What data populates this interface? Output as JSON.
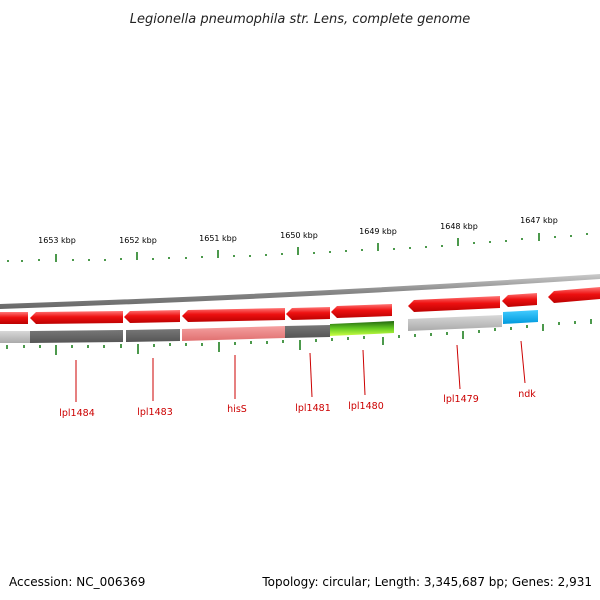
{
  "title": "Legionella pneumophila str. Lens, complete genome",
  "ticks": [
    {
      "label": "1653 kbp"
    },
    {
      "label": "1652 kbp"
    },
    {
      "label": "1651 kbp"
    },
    {
      "label": "1650 kbp"
    },
    {
      "label": "1649 kbp"
    },
    {
      "label": "1648 kbp"
    },
    {
      "label": "1647 kbp"
    }
  ],
  "genes": [
    {
      "label": "lpl1484"
    },
    {
      "label": "lpl1483"
    },
    {
      "label": "hisS"
    },
    {
      "label": "lpl1481"
    },
    {
      "label": "lpl1480"
    },
    {
      "label": "lpl1479"
    },
    {
      "label": "ndk"
    }
  ],
  "footer": {
    "accession": "Accession: NC_006369",
    "summary": "Topology: circular; Length: 3,345,687 bp; Genes: 2,931"
  },
  "colors": {
    "forward_feature": "#ee1111",
    "backbone": "#888888",
    "gc_tick": "#117711",
    "gene_label": "#cc0000",
    "cog_teal": "#00aadd",
    "cog_green": "#66cc22",
    "cog_pink": "#ee8888",
    "cog_dark_gray": "#666666",
    "cog_light_gray": "#bbbbbb"
  }
}
